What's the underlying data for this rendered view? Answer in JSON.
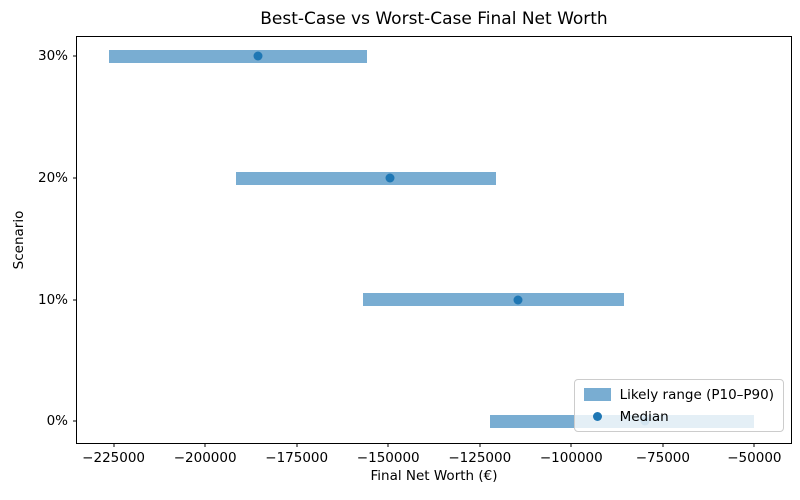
{
  "chart_data": {
    "type": "bar",
    "subtype": "horizontal-range-with-median-dot",
    "title": "Best-Case vs Worst-Case Final Net Worth",
    "xlabel": "Final Net Worth (€)",
    "ylabel": "Scenario",
    "categories": [
      "0%",
      "10%",
      "20%",
      "30%"
    ],
    "series": [
      {
        "name": "P10",
        "values": [
          -122300,
          -157000,
          -191500,
          -226300
        ]
      },
      {
        "name": "Median",
        "values": [
          -80000,
          -114500,
          -149500,
          -185700
        ]
      },
      {
        "name": "P90",
        "values": [
          -50000,
          -85500,
          -120500,
          -155700
        ]
      }
    ],
    "xlim": [
      -235000,
      -40000
    ],
    "ylim": [
      -0.18,
      3.16
    ],
    "xticks": [
      {
        "value": -225000,
        "label": "−225000"
      },
      {
        "value": -200000,
        "label": "−200000"
      },
      {
        "value": -175000,
        "label": "−175000"
      },
      {
        "value": -150000,
        "label": "−150000"
      },
      {
        "value": -125000,
        "label": "−125000"
      },
      {
        "value": -100000,
        "label": "−100000"
      },
      {
        "value": -75000,
        "label": "−75000"
      },
      {
        "value": -50000,
        "label": "−50000"
      }
    ],
    "legend_entries": [
      {
        "label": "Likely range (P10–P90)",
        "marker": "bar-swatch"
      },
      {
        "label": "Median",
        "marker": "dot"
      }
    ],
    "legend_position": "lower right",
    "grid": false,
    "colors": {
      "bar": "#1f77b4",
      "bar_alpha": 0.6,
      "median": "#1f77b4",
      "spine": "#000000",
      "legend_border": "#cccccc"
    }
  }
}
